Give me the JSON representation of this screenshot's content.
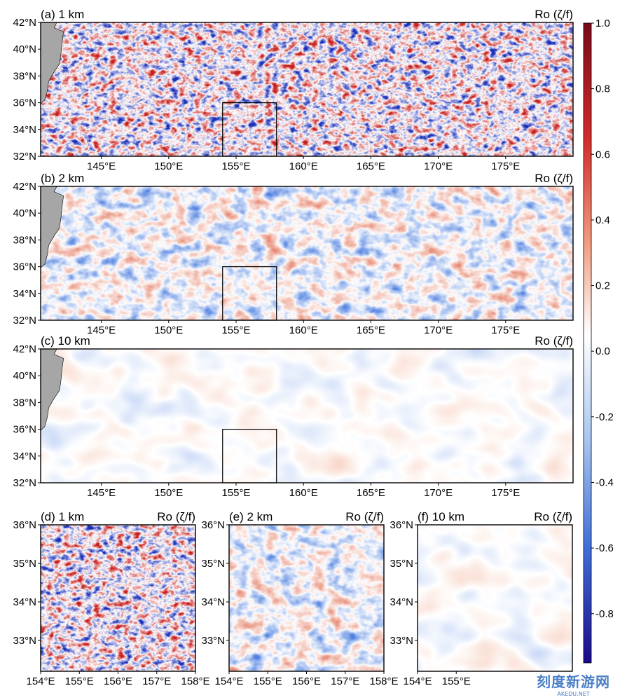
{
  "chart_data": [
    {
      "type": "heatmap",
      "panel": "a",
      "title": "(a) 1 km",
      "title_right": "Ro (ζ/f)",
      "lon_range": [
        140.5,
        180
      ],
      "lat_range": [
        32,
        42
      ],
      "xticks": [
        145,
        150,
        155,
        160,
        165,
        170,
        175
      ],
      "xtick_labels": [
        "145°E",
        "150°E",
        "155°E",
        "160°E",
        "165°E",
        "170°E",
        "175°E"
      ],
      "yticks": [
        32,
        34,
        36,
        38,
        40,
        42
      ],
      "ytick_labels": [
        "32°N",
        "34°N",
        "36°N",
        "38°N",
        "40°N",
        "42°N"
      ],
      "box": {
        "lon": [
          154,
          158
        ],
        "lat": [
          32,
          36
        ]
      }
    },
    {
      "type": "heatmap",
      "panel": "b",
      "title": "(b) 2 km",
      "title_right": "Ro (ζ/f)",
      "lon_range": [
        140.5,
        180
      ],
      "lat_range": [
        32,
        42
      ],
      "xticks": [
        145,
        150,
        155,
        160,
        165,
        170,
        175
      ],
      "xtick_labels": [
        "145°E",
        "150°E",
        "155°E",
        "160°E",
        "165°E",
        "170°E",
        "175°E"
      ],
      "yticks": [
        32,
        34,
        36,
        38,
        40,
        42
      ],
      "ytick_labels": [
        "32°N",
        "34°N",
        "36°N",
        "38°N",
        "40°N",
        "42°N"
      ],
      "box": {
        "lon": [
          154,
          158
        ],
        "lat": [
          32,
          36
        ]
      }
    },
    {
      "type": "heatmap",
      "panel": "c",
      "title": "(c) 10 km",
      "title_right": "Ro (ζ/f)",
      "lon_range": [
        140.5,
        180
      ],
      "lat_range": [
        32,
        42
      ],
      "xticks": [
        145,
        150,
        155,
        160,
        165,
        170,
        175
      ],
      "xtick_labels": [
        "145°E",
        "150°E",
        "155°E",
        "160°E",
        "165°E",
        "170°E",
        "175°E"
      ],
      "yticks": [
        32,
        34,
        36,
        38,
        40,
        42
      ],
      "ytick_labels": [
        "32°N",
        "34°N",
        "36°N",
        "38°N",
        "40°N",
        "42°N"
      ],
      "box": {
        "lon": [
          154,
          158
        ],
        "lat": [
          32,
          36
        ]
      }
    },
    {
      "type": "heatmap",
      "panel": "d",
      "title": "(d) 1 km",
      "title_right": "Ro (ζ/f)",
      "lon_range": [
        154,
        158
      ],
      "lat_range": [
        32.2,
        36
      ],
      "xticks": [
        154,
        155,
        156,
        157,
        158
      ],
      "xtick_labels": [
        "154°E",
        "155°E",
        "156°E",
        "157°E",
        "158°E"
      ],
      "yticks": [
        33,
        34,
        35,
        36
      ],
      "ytick_labels": [
        "33°N",
        "34°N",
        "35°N",
        "36°N"
      ]
    },
    {
      "type": "heatmap",
      "panel": "e",
      "title": "(e) 2 km",
      "title_right": "Ro (ζ/f)",
      "lon_range": [
        154,
        158
      ],
      "lat_range": [
        32.2,
        36
      ],
      "xticks": [
        154,
        155,
        156,
        157,
        158
      ],
      "xtick_labels": [
        "154°E",
        "155°E",
        "156°E",
        "157°E",
        "158°E"
      ],
      "yticks": [
        33,
        34,
        35,
        36
      ],
      "ytick_labels": [
        "33°N",
        "34°N",
        "35°N",
        "36°N"
      ]
    },
    {
      "type": "heatmap",
      "panel": "f",
      "title": "(f) 10 km",
      "title_right": "Ro (ζ/f)",
      "lon_range": [
        154,
        158
      ],
      "lat_range": [
        32.2,
        36
      ],
      "xticks": [
        154,
        155
      ],
      "xtick_labels": [
        "154°E",
        "155°E"
      ],
      "yticks": [
        33,
        34,
        35,
        36
      ],
      "ytick_labels": [
        "33°N",
        "34°N",
        "35°N",
        "36°N"
      ]
    }
  ],
  "colorbar": {
    "range": [
      -0.95,
      1.0
    ],
    "ticks": [
      1.0,
      0.8,
      0.6,
      0.4,
      0.2,
      0.0,
      -0.2,
      -0.4,
      -0.6,
      -0.8
    ],
    "tick_labels": [
      "1.0",
      "0.8",
      "0.6",
      "0.4",
      "0.2",
      "0.0",
      "-0.2",
      "-0.4",
      "-0.6",
      "-0.8"
    ],
    "colormap": "seismic",
    "colors": {
      "negative_end": "#1a0a8c",
      "mid_negative": "#4a7fd8",
      "zero": "#ffffff",
      "mid_positive": "#e86a4a",
      "positive_end": "#7a0a1a"
    }
  },
  "land_color": "#a6a6a6",
  "watermark": {
    "cn": "刻度新游网",
    "en": "AKEDU.NET"
  }
}
